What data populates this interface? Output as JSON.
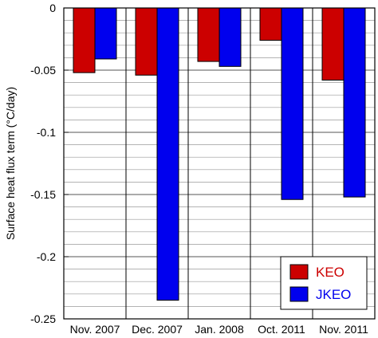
{
  "chart_data": {
    "type": "bar",
    "title": "",
    "xlabel": "",
    "ylabel": "Surface heat flux term (°C/day)",
    "categories": [
      "Nov. 2007",
      "Dec. 2007",
      "Jan. 2008",
      "Oct. 2011",
      "Nov. 2011"
    ],
    "series": [
      {
        "name": "KEO",
        "color": "#cc0000",
        "values": [
          -0.052,
          -0.054,
          -0.043,
          -0.026,
          -0.058
        ]
      },
      {
        "name": "JKEO",
        "color": "#0000ee",
        "values": [
          -0.041,
          -0.235,
          -0.047,
          -0.154,
          -0.152
        ]
      }
    ],
    "ylim": [
      -0.25,
      0
    ],
    "yticks": [
      0,
      -0.05,
      -0.1,
      -0.15,
      -0.2,
      -0.25
    ],
    "ytick_labels": [
      "0",
      "-0.05",
      "-0.1",
      "-0.15",
      "-0.2",
      "-0.25"
    ],
    "minor_grid_step": 0.01,
    "grid": true,
    "legend_position": "bottom-right"
  }
}
